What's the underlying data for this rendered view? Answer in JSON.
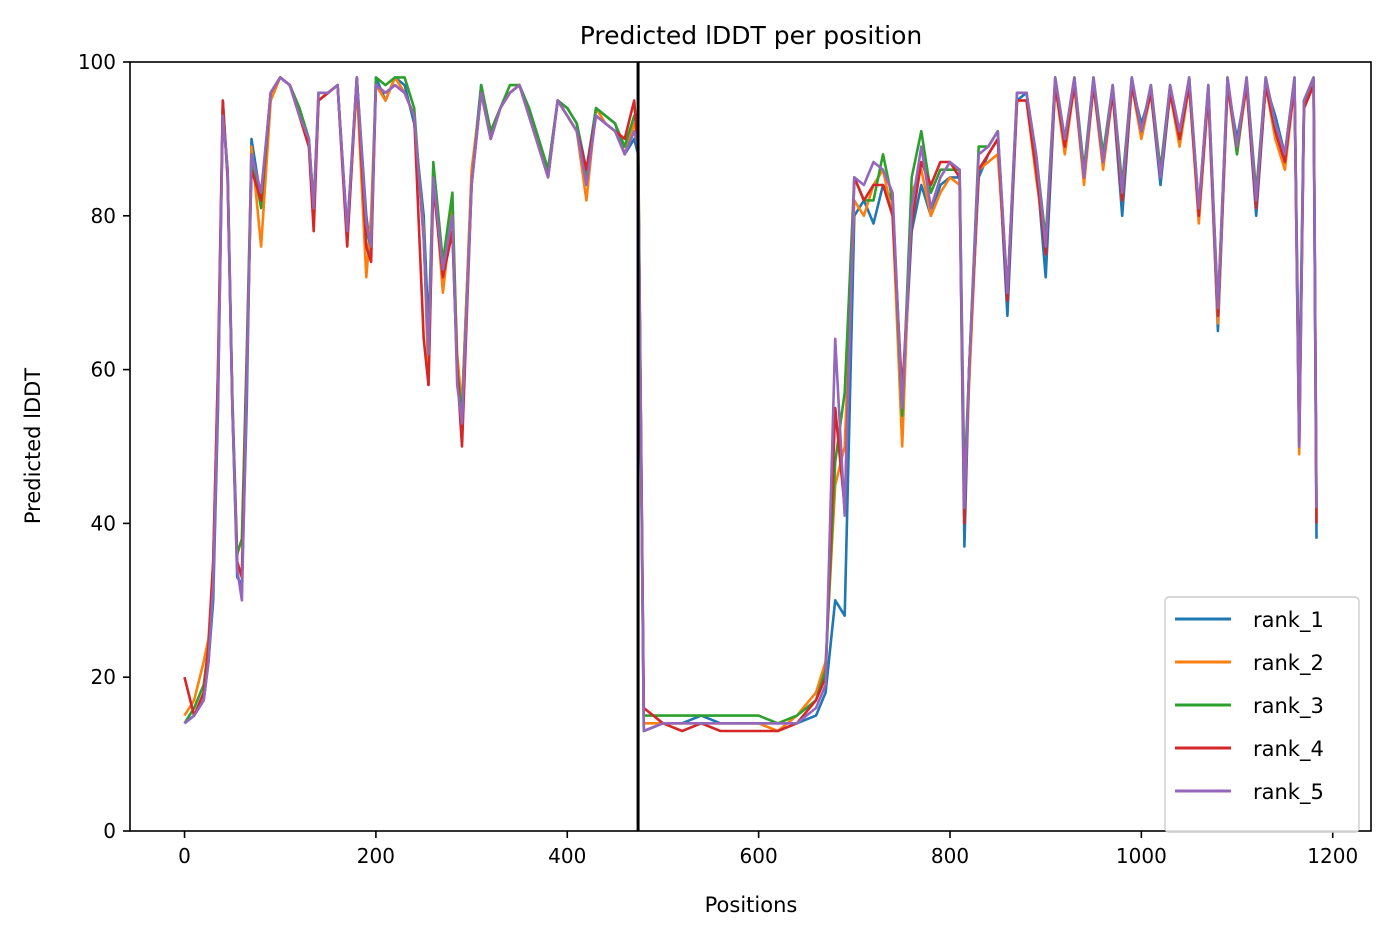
{
  "chart_data": {
    "type": "line",
    "title": "Predicted lDDT per position",
    "xlabel": "Positions",
    "ylabel": "Predicted lDDT",
    "xlim": [
      -57,
      1240
    ],
    "ylim": [
      0,
      100
    ],
    "xticks": [
      0,
      200,
      400,
      600,
      800,
      1000,
      1200
    ],
    "yticks": [
      0,
      20,
      40,
      60,
      80,
      100
    ],
    "grid": false,
    "legend_position": "lower-right",
    "chain_break": 474,
    "series": [
      {
        "name": "rank_1",
        "color": "#1f77b4",
        "x": [
          0,
          10,
          20,
          25,
          30,
          35,
          40,
          45,
          50,
          55,
          60,
          65,
          70,
          80,
          90,
          100,
          110,
          120,
          130,
          135,
          140,
          150,
          160,
          170,
          180,
          190,
          195,
          200,
          210,
          220,
          230,
          240,
          250,
          255,
          260,
          270,
          280,
          285,
          290,
          300,
          310,
          320,
          330,
          340,
          350,
          360,
          370,
          380,
          390,
          400,
          410,
          420,
          430,
          440,
          450,
          460,
          470,
          474,
          480,
          500,
          520,
          540,
          560,
          580,
          600,
          620,
          640,
          660,
          670,
          680,
          690,
          700,
          710,
          720,
          730,
          740,
          750,
          760,
          770,
          780,
          790,
          800,
          810,
          815,
          820,
          830,
          840,
          850,
          860,
          870,
          880,
          890,
          900,
          910,
          920,
          930,
          940,
          950,
          960,
          970,
          980,
          990,
          1000,
          1010,
          1020,
          1030,
          1040,
          1050,
          1060,
          1070,
          1080,
          1090,
          1100,
          1110,
          1120,
          1130,
          1140,
          1150,
          1160,
          1165,
          1170,
          1180,
          1183
        ],
        "y": [
          14,
          15,
          17,
          22,
          30,
          55,
          95,
          85,
          55,
          33,
          32,
          55,
          90,
          82,
          96,
          98,
          97,
          94,
          90,
          80,
          95,
          96,
          97,
          78,
          98,
          80,
          75,
          98,
          95,
          98,
          97,
          92,
          80,
          65,
          85,
          72,
          78,
          60,
          55,
          85,
          97,
          90,
          94,
          96,
          97,
          94,
          90,
          86,
          95,
          94,
          92,
          86,
          94,
          93,
          92,
          88,
          90,
          88,
          13,
          14,
          14,
          15,
          14,
          14,
          14,
          14,
          14,
          15,
          18,
          30,
          28,
          80,
          82,
          79,
          84,
          82,
          55,
          78,
          84,
          80,
          84,
          85,
          85,
          37,
          60,
          85,
          88,
          90,
          67,
          95,
          96,
          87,
          72,
          97,
          90,
          97,
          85,
          97,
          88,
          96,
          80,
          97,
          92,
          96,
          84,
          96,
          91,
          97,
          80,
          96,
          65,
          97,
          90,
          97,
          80,
          97,
          93,
          88,
          97,
          55,
          95,
          97,
          38
        ]
      },
      {
        "name": "rank_2",
        "color": "#ff7f0e",
        "x": [
          0,
          10,
          20,
          25,
          30,
          35,
          40,
          45,
          50,
          55,
          60,
          65,
          70,
          80,
          90,
          100,
          110,
          120,
          130,
          135,
          140,
          150,
          160,
          170,
          180,
          190,
          195,
          200,
          210,
          220,
          230,
          240,
          250,
          255,
          260,
          270,
          280,
          285,
          290,
          300,
          310,
          320,
          330,
          340,
          350,
          360,
          370,
          380,
          390,
          400,
          410,
          420,
          430,
          440,
          450,
          460,
          470,
          474,
          480,
          500,
          520,
          540,
          560,
          580,
          600,
          620,
          640,
          660,
          670,
          680,
          690,
          700,
          710,
          720,
          730,
          740,
          750,
          760,
          770,
          780,
          790,
          800,
          810,
          815,
          820,
          830,
          840,
          850,
          860,
          870,
          880,
          890,
          900,
          910,
          920,
          930,
          940,
          950,
          960,
          970,
          980,
          990,
          1000,
          1010,
          1020,
          1030,
          1040,
          1050,
          1060,
          1070,
          1080,
          1090,
          1100,
          1110,
          1120,
          1130,
          1140,
          1150,
          1160,
          1165,
          1170,
          1180,
          1183
        ],
        "y": [
          15,
          17,
          22,
          25,
          35,
          60,
          93,
          86,
          56,
          35,
          33,
          60,
          89,
          76,
          95,
          98,
          97,
          93,
          89,
          82,
          95,
          96,
          97,
          77,
          97,
          72,
          80,
          97,
          95,
          98,
          96,
          93,
          78,
          58,
          86,
          70,
          81,
          62,
          55,
          86,
          96,
          91,
          94,
          96,
          97,
          93,
          89,
          85,
          95,
          93,
          91,
          82,
          94,
          92,
          91,
          88,
          92,
          90,
          14,
          14,
          14,
          14,
          14,
          14,
          14,
          13,
          15,
          18,
          22,
          45,
          50,
          82,
          80,
          84,
          86,
          80,
          50,
          83,
          86,
          80,
          83,
          85,
          84,
          42,
          58,
          86,
          87,
          88,
          70,
          95,
          95,
          85,
          76,
          97,
          88,
          97,
          84,
          97,
          86,
          96,
          82,
          97,
          90,
          96,
          86,
          96,
          89,
          97,
          79,
          96,
          66,
          97,
          88,
          97,
          82,
          97,
          90,
          86,
          97,
          49,
          94,
          97,
          41
        ]
      },
      {
        "name": "rank_3",
        "color": "#2ca02c",
        "x": [
          0,
          10,
          20,
          25,
          30,
          35,
          40,
          45,
          50,
          55,
          60,
          65,
          70,
          80,
          90,
          100,
          110,
          120,
          130,
          135,
          140,
          150,
          160,
          170,
          180,
          190,
          195,
          200,
          210,
          220,
          230,
          240,
          250,
          255,
          260,
          270,
          280,
          285,
          290,
          300,
          310,
          320,
          330,
          340,
          350,
          360,
          370,
          380,
          390,
          400,
          410,
          420,
          430,
          440,
          450,
          460,
          470,
          474,
          480,
          500,
          520,
          540,
          560,
          580,
          600,
          620,
          640,
          660,
          670,
          680,
          690,
          700,
          710,
          720,
          730,
          740,
          750,
          760,
          770,
          780,
          790,
          800,
          810,
          815,
          820,
          830,
          840,
          850,
          860,
          870,
          880,
          890,
          900,
          910,
          920,
          930,
          940,
          950,
          960,
          970,
          980,
          990,
          1000,
          1010,
          1020,
          1030,
          1040,
          1050,
          1060,
          1070,
          1080,
          1090,
          1100,
          1110,
          1120,
          1130,
          1140,
          1150,
          1160,
          1165,
          1170,
          1180,
          1183
        ],
        "y": [
          14,
          16,
          19,
          24,
          33,
          58,
          94,
          86,
          56,
          36,
          38,
          62,
          88,
          81,
          96,
          98,
          97,
          94,
          90,
          81,
          96,
          96,
          97,
          77,
          98,
          78,
          76,
          98,
          97,
          98,
          98,
          94,
          77,
          62,
          87,
          74,
          83,
          60,
          54,
          84,
          97,
          91,
          94,
          97,
          97,
          94,
          90,
          86,
          95,
          94,
          92,
          85,
          94,
          93,
          92,
          89,
          93,
          91,
          15,
          15,
          15,
          15,
          15,
          15,
          15,
          14,
          15,
          17,
          21,
          48,
          57,
          85,
          82,
          82,
          88,
          82,
          54,
          85,
          91,
          83,
          86,
          86,
          86,
          45,
          60,
          89,
          89,
          91,
          70,
          96,
          96,
          88,
          77,
          98,
          90,
          98,
          86,
          98,
          88,
          97,
          84,
          98,
          91,
          97,
          86,
          97,
          90,
          98,
          81,
          97,
          68,
          98,
          88,
          98,
          83,
          98,
          92,
          88,
          98,
          52,
          95,
          98,
          42
        ]
      },
      {
        "name": "rank_4",
        "color": "#d62728",
        "x": [
          0,
          10,
          20,
          25,
          30,
          35,
          40,
          45,
          50,
          55,
          60,
          65,
          70,
          80,
          90,
          100,
          110,
          120,
          130,
          135,
          140,
          150,
          160,
          170,
          180,
          190,
          195,
          200,
          210,
          220,
          230,
          240,
          250,
          255,
          260,
          270,
          280,
          285,
          290,
          300,
          310,
          320,
          330,
          340,
          350,
          360,
          370,
          380,
          390,
          400,
          410,
          420,
          430,
          440,
          450,
          460,
          470,
          474,
          480,
          500,
          520,
          540,
          560,
          580,
          600,
          620,
          640,
          660,
          670,
          680,
          690,
          700,
          710,
          720,
          730,
          740,
          750,
          760,
          770,
          780,
          790,
          800,
          810,
          815,
          820,
          830,
          840,
          850,
          860,
          870,
          880,
          890,
          900,
          910,
          920,
          930,
          940,
          950,
          960,
          970,
          980,
          990,
          1000,
          1010,
          1020,
          1030,
          1040,
          1050,
          1060,
          1070,
          1080,
          1090,
          1100,
          1110,
          1120,
          1130,
          1140,
          1150,
          1160,
          1165,
          1170,
          1180,
          1183
        ],
        "y": [
          20,
          15,
          18,
          24,
          35,
          60,
          95,
          85,
          55,
          35,
          33,
          60,
          86,
          82,
          96,
          98,
          97,
          93,
          89,
          78,
          95,
          96,
          97,
          76,
          98,
          76,
          74,
          97,
          96,
          97,
          96,
          93,
          64,
          58,
          84,
          72,
          78,
          60,
          50,
          84,
          96,
          90,
          94,
          96,
          97,
          93,
          89,
          85,
          95,
          93,
          91,
          86,
          93,
          92,
          91,
          90,
          95,
          88,
          16,
          14,
          13,
          14,
          13,
          13,
          13,
          13,
          14,
          17,
          20,
          55,
          42,
          85,
          82,
          84,
          84,
          80,
          57,
          79,
          87,
          84,
          87,
          87,
          85,
          40,
          60,
          86,
          88,
          90,
          69,
          95,
          95,
          86,
          75,
          97,
          89,
          97,
          85,
          97,
          87,
          96,
          82,
          97,
          91,
          96,
          85,
          96,
          90,
          97,
          80,
          96,
          67,
          97,
          89,
          97,
          81,
          97,
          91,
          87,
          97,
          50,
          94,
          97,
          40
        ]
      },
      {
        "name": "rank_5",
        "color": "#9467bd",
        "x": [
          0,
          10,
          20,
          25,
          30,
          35,
          40,
          45,
          50,
          55,
          60,
          65,
          70,
          80,
          90,
          100,
          110,
          120,
          130,
          135,
          140,
          150,
          160,
          170,
          180,
          190,
          195,
          200,
          210,
          220,
          230,
          240,
          250,
          255,
          260,
          270,
          280,
          285,
          290,
          300,
          310,
          320,
          330,
          340,
          350,
          360,
          370,
          380,
          390,
          400,
          410,
          420,
          430,
          440,
          450,
          460,
          470,
          474,
          480,
          500,
          520,
          540,
          560,
          580,
          600,
          620,
          640,
          660,
          670,
          680,
          690,
          700,
          710,
          720,
          730,
          740,
          750,
          760,
          770,
          780,
          790,
          800,
          810,
          815,
          820,
          830,
          840,
          850,
          860,
          870,
          880,
          890,
          900,
          910,
          920,
          930,
          940,
          950,
          960,
          970,
          980,
          990,
          1000,
          1010,
          1020,
          1030,
          1040,
          1050,
          1060,
          1070,
          1080,
          1090,
          1100,
          1110,
          1120,
          1130,
          1140,
          1150,
          1160,
          1165,
          1170,
          1180,
          1183
        ],
        "y": [
          14,
          15,
          17,
          22,
          32,
          57,
          93,
          86,
          55,
          34,
          30,
          58,
          88,
          83,
          96,
          98,
          97,
          93,
          90,
          81,
          96,
          96,
          97,
          78,
          98,
          79,
          76,
          97,
          96,
          97,
          96,
          93,
          77,
          62,
          85,
          73,
          80,
          58,
          53,
          84,
          96,
          90,
          94,
          96,
          97,
          93,
          89,
          85,
          95,
          93,
          91,
          84,
          93,
          92,
          91,
          88,
          91,
          89,
          13,
          14,
          14,
          14,
          14,
          14,
          14,
          14,
          14,
          16,
          19,
          64,
          41,
          85,
          84,
          87,
          86,
          83,
          55,
          81,
          89,
          81,
          85,
          87,
          86,
          42,
          60,
          88,
          89,
          91,
          70,
          96,
          96,
          88,
          76,
          98,
          90,
          98,
          85,
          98,
          87,
          97,
          83,
          98,
          91,
          97,
          85,
          97,
          91,
          98,
          81,
          97,
          68,
          98,
          89,
          98,
          82,
          98,
          92,
          88,
          98,
          50,
          95,
          98,
          42
        ]
      }
    ]
  }
}
